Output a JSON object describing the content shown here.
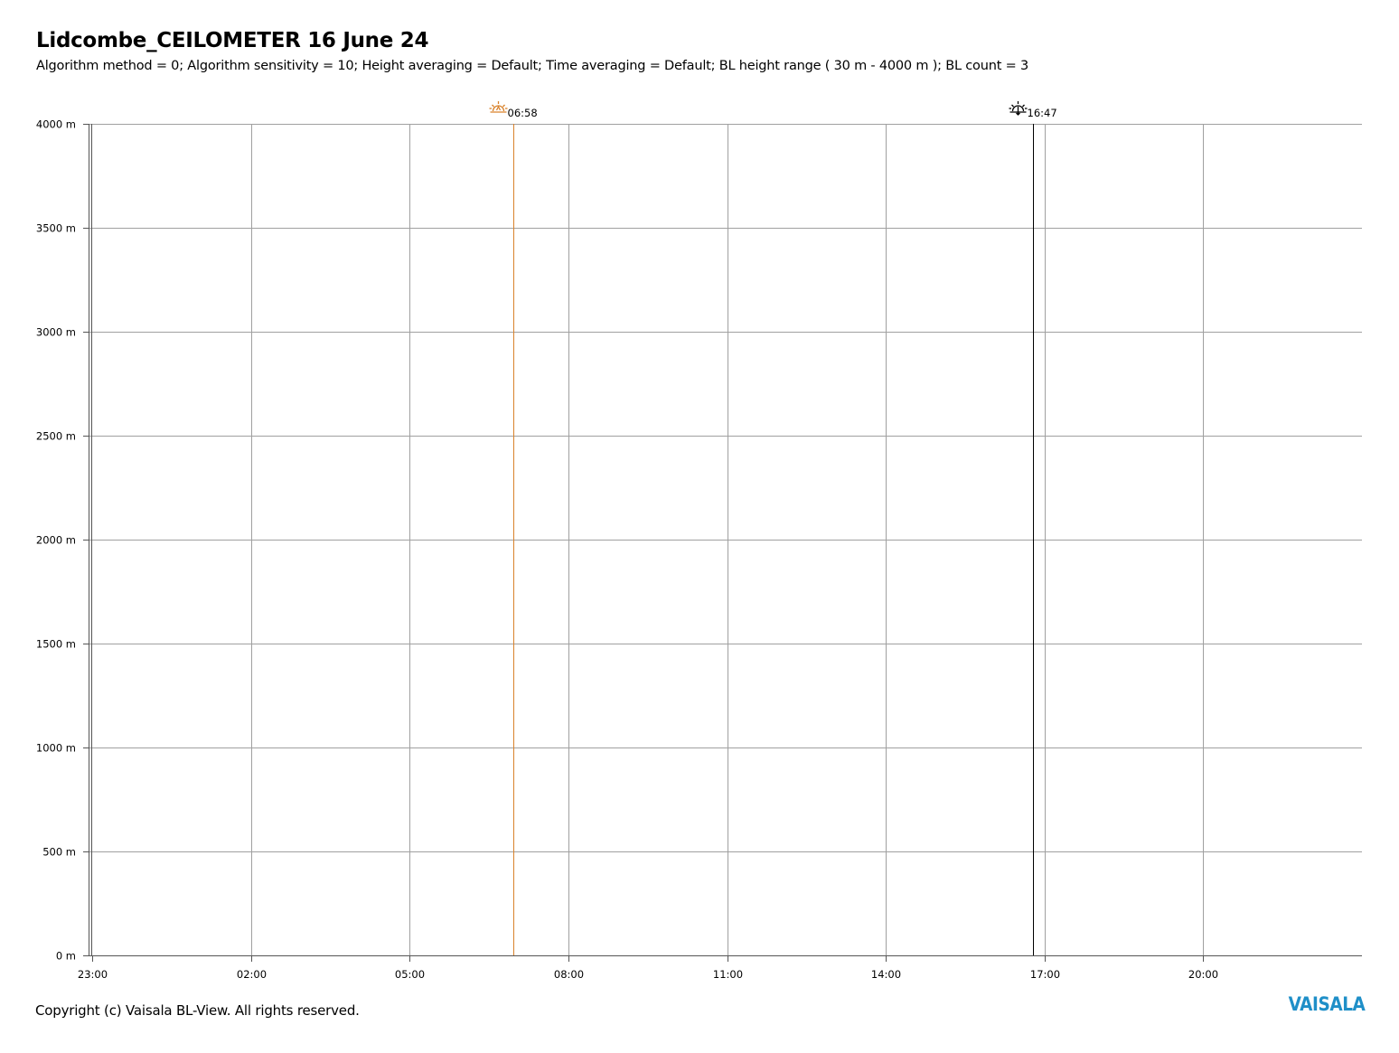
{
  "header": {
    "title": "Lidcombe_CEILOMETER 16 June 24",
    "subtitle": "Algorithm method = 0; Algorithm sensitivity = 10; Height averaging = Default; Time averaging = Default; BL height range ( 30 m - 4000 m ); BL count = 3"
  },
  "footer": {
    "copyright": "Copyright (c) Vaisala BL-View. All rights reserved.",
    "logo": "VAISALA"
  },
  "colors": {
    "grid": "#a0a0a0",
    "axis": "#555555",
    "sunrise": "#d9822b",
    "sunset": "#000000",
    "logo": "#1f8fc8"
  },
  "chart_data": {
    "type": "line",
    "x_tick_labels": [
      "23:00",
      "02:00",
      "05:00",
      "08:00",
      "11:00",
      "14:00",
      "17:00",
      "20:00"
    ],
    "x_tick_hours": [
      -1,
      2,
      5,
      8,
      11,
      14,
      17,
      20
    ],
    "xlim_hours": [
      -1,
      23
    ],
    "y_tick_labels": [
      "0 m",
      "500 m",
      "1000 m",
      "1500 m",
      "2000 m",
      "2500 m",
      "3000 m",
      "3500 m",
      "4000 m"
    ],
    "y_tick_values": [
      0,
      500,
      1000,
      1500,
      2000,
      2500,
      3000,
      3500,
      4000
    ],
    "ylim": [
      0,
      4000
    ],
    "grid": true,
    "series": [],
    "events": [
      {
        "type": "sunrise",
        "label": "06:58",
        "hour": 6.9667,
        "icon": "sunrise-icon"
      },
      {
        "type": "sunset",
        "label": "16:47",
        "hour": 16.7833,
        "icon": "sunset-icon"
      }
    ]
  }
}
